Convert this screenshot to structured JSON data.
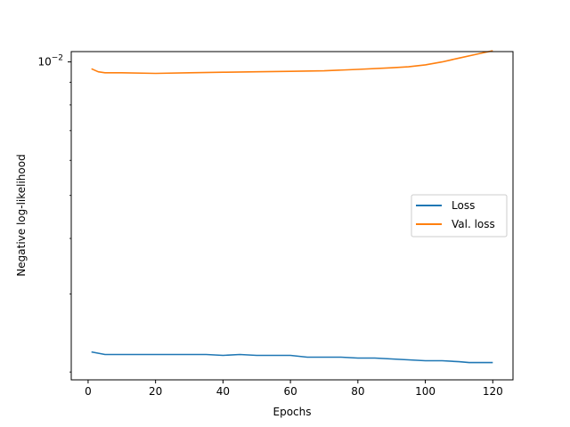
{
  "chart_data": {
    "type": "line",
    "xlabel": "Epochs",
    "ylabel": "Negative log-likelihood",
    "xlim": [
      -5,
      126
    ],
    "ylim": [
      0.00192,
      0.01055
    ],
    "yscale": "log",
    "xticks": [
      0,
      20,
      40,
      60,
      80,
      100,
      120
    ],
    "yticks": [
      {
        "value": 0.01,
        "base": "10",
        "exponent": "−2"
      }
    ],
    "legend_position": "center-right",
    "series": [
      {
        "name": "Loss",
        "color": "#1f77b4",
        "x": [
          1,
          5,
          10,
          15,
          20,
          25,
          30,
          35,
          40,
          45,
          50,
          55,
          60,
          65,
          70,
          75,
          80,
          85,
          90,
          95,
          100,
          105,
          110,
          113,
          115,
          117,
          120
        ],
        "y": [
          0.00222,
          0.00219,
          0.00219,
          0.00219,
          0.00219,
          0.00219,
          0.00219,
          0.00219,
          0.00218,
          0.00219,
          0.00218,
          0.00218,
          0.00218,
          0.00216,
          0.00216,
          0.00216,
          0.00215,
          0.00215,
          0.00214,
          0.00213,
          0.00212,
          0.00212,
          0.00211,
          0.0021,
          0.0021,
          0.0021,
          0.0021
        ]
      },
      {
        "name": "Val. loss",
        "color": "#ff7f0e",
        "x": [
          1,
          3,
          5,
          10,
          20,
          30,
          40,
          50,
          60,
          70,
          80,
          90,
          95,
          100,
          105,
          110,
          115,
          120
        ],
        "y": [
          0.00965,
          0.0095,
          0.00945,
          0.00945,
          0.00942,
          0.00945,
          0.00948,
          0.0095,
          0.00952,
          0.00955,
          0.00962,
          0.0097,
          0.00975,
          0.00985,
          0.01,
          0.0102,
          0.0104,
          0.0106
        ]
      }
    ]
  }
}
